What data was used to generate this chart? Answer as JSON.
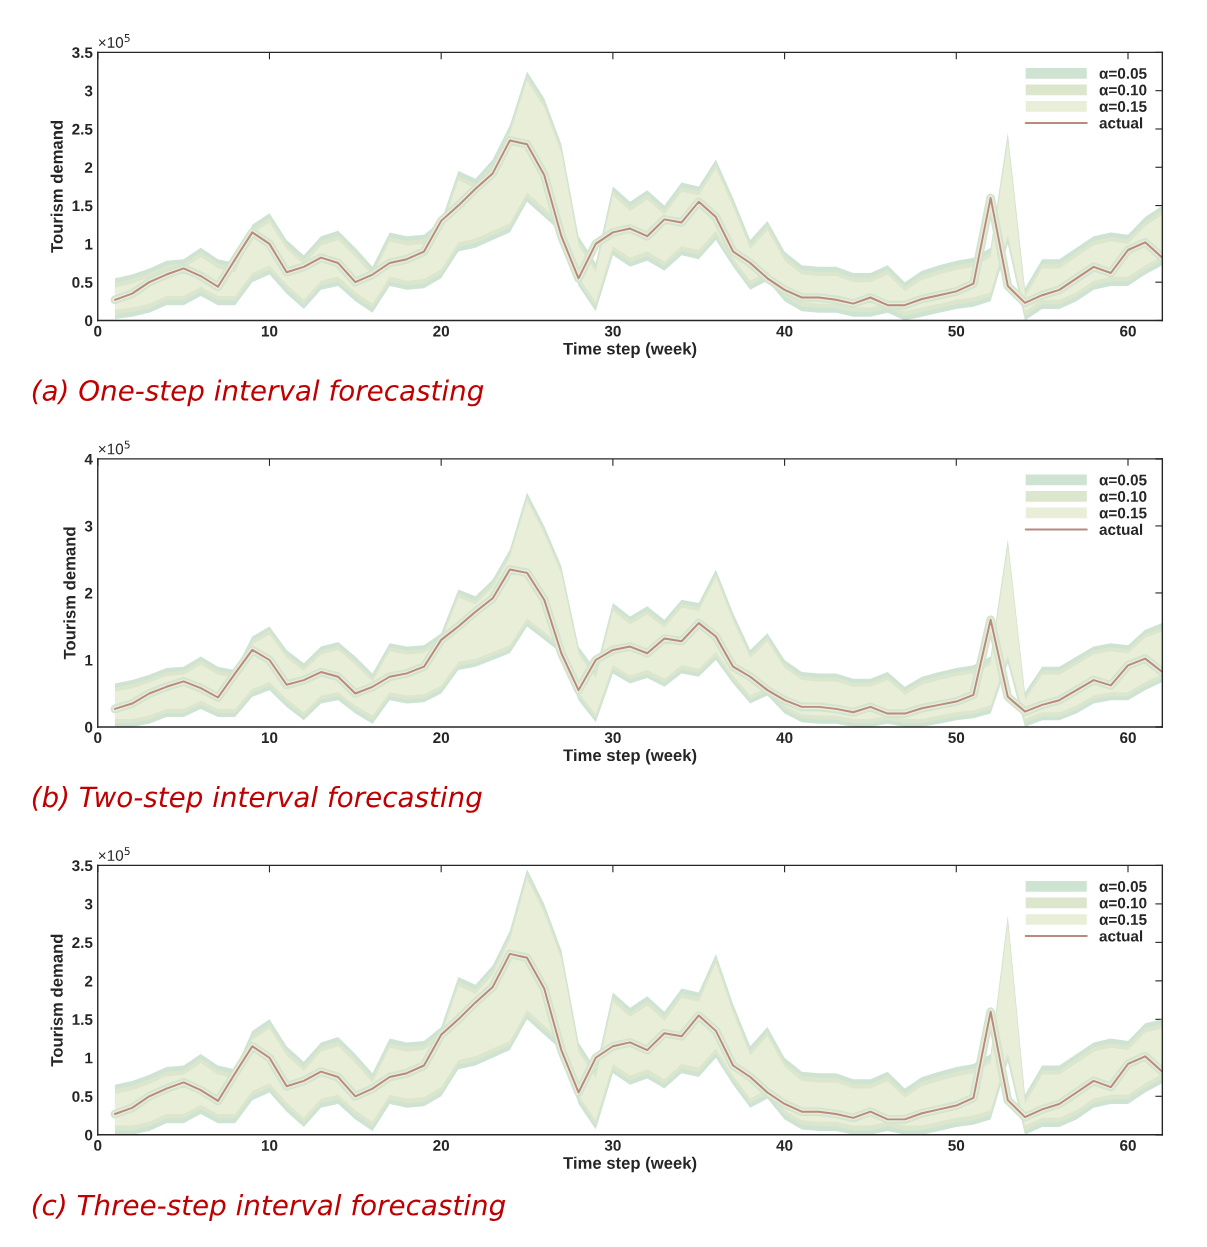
{
  "chart_data": [
    {
      "type": "line",
      "title": "(a) One-step interval forecasting",
      "xlabel": "Time step (week)",
      "ylabel": "Tourism demand",
      "annotations": [
        "×10$^{5}$"
      ],
      "x": [
        1,
        2,
        3,
        4,
        5,
        6,
        7,
        8,
        9,
        10,
        11,
        12,
        13,
        14,
        15,
        16,
        17,
        18,
        19,
        20,
        21,
        22,
        23,
        24,
        25,
        26,
        27,
        28,
        29,
        30,
        31,
        32,
        33,
        34,
        35,
        36,
        37,
        38,
        39,
        40,
        41,
        42,
        43,
        44,
        45,
        46,
        47,
        48,
        49,
        50,
        51,
        52,
        53,
        54,
        55,
        56,
        57,
        58,
        59,
        60,
        61,
        62
      ],
      "xlim": [
        0,
        62
      ],
      "xticks": [
        0,
        10,
        20,
        30,
        40,
        50,
        60
      ],
      "ylim": [
        0,
        3.5
      ],
      "yticks": [
        0,
        0.5,
        1,
        1.5,
        2,
        2.5,
        3,
        3.5
      ],
      "grid": false,
      "legend": "top right",
      "series": [
        {
          "name": "α=0.05",
          "color": "#cfe3d3",
          "values": [
            0.27,
            0.35,
            0.5,
            0.6,
            0.68,
            0.58,
            0.44,
            0.8,
            1.15,
            1.0,
            0.63,
            0.7,
            0.82,
            0.75,
            0.5,
            0.6,
            0.75,
            0.8,
            0.9,
            1.3,
            1.5,
            1.72,
            1.92,
            2.35,
            2.3,
            1.9,
            1.1,
            0.55,
            1.0,
            1.15,
            1.2,
            1.1,
            1.32,
            1.28,
            1.55,
            1.35,
            0.9,
            0.75,
            0.55,
            0.4,
            0.3,
            0.3,
            0.27,
            0.22,
            0.3,
            0.2,
            0.2,
            0.28,
            0.33,
            0.38,
            0.48,
            1.6,
            0.45,
            0.23,
            0.33,
            0.4,
            0.55,
            0.7,
            0.62,
            0.92,
            1.02,
            0.82
          ],
          "upper": [
            0.55,
            0.6,
            0.68,
            0.78,
            0.8,
            0.95,
            0.8,
            0.75,
            1.25,
            1.4,
            1.05,
            0.85,
            1.1,
            1.17,
            0.95,
            0.7,
            1.15,
            1.1,
            1.12,
            1.3,
            1.95,
            1.85,
            2.1,
            2.55,
            3.25,
            2.9,
            2.3,
            1.1,
            0.75,
            1.75,
            1.55,
            1.7,
            1.5,
            1.8,
            1.75,
            2.1,
            1.6,
            1.05,
            1.3,
            0.9,
            0.72,
            0.7,
            0.7,
            0.62,
            0.62,
            0.72,
            0.5,
            0.65,
            0.72,
            0.78,
            0.82,
            0.95,
            2.45,
            0.42,
            0.8,
            0.8,
            0.95,
            1.1,
            1.15,
            1.12,
            1.35,
            1.5
          ],
          "lower": [
            0.02,
            0.05,
            0.1,
            0.2,
            0.2,
            0.32,
            0.2,
            0.2,
            0.5,
            0.6,
            0.35,
            0.15,
            0.4,
            0.45,
            0.25,
            0.1,
            0.45,
            0.4,
            0.42,
            0.55,
            0.9,
            0.95,
            1.05,
            1.15,
            1.55,
            1.35,
            1.15,
            0.45,
            0.12,
            0.85,
            0.7,
            0.78,
            0.65,
            0.85,
            0.8,
            1.05,
            0.7,
            0.4,
            0.52,
            0.25,
            0.12,
            0.1,
            0.1,
            0.05,
            0.05,
            0.1,
            0.0,
            0.05,
            0.1,
            0.15,
            0.18,
            0.25,
            1.0,
            0.0,
            0.15,
            0.15,
            0.25,
            0.4,
            0.45,
            0.45,
            0.6,
            0.72
          ]
        },
        {
          "name": "α=0.10",
          "color": "#dbe6cd",
          "values": [
            0.27,
            0.35,
            0.5,
            0.6,
            0.68,
            0.58,
            0.44,
            0.8,
            1.15,
            1.0,
            0.63,
            0.7,
            0.82,
            0.75,
            0.5,
            0.6,
            0.75,
            0.8,
            0.9,
            1.3,
            1.5,
            1.72,
            1.92,
            2.35,
            2.3,
            1.9,
            1.1,
            0.55,
            1.0,
            1.15,
            1.2,
            1.1,
            1.32,
            1.28,
            1.55,
            1.35,
            0.9,
            0.75,
            0.55,
            0.4,
            0.3,
            0.3,
            0.27,
            0.22,
            0.3,
            0.2,
            0.2,
            0.28,
            0.33,
            0.38,
            0.48,
            1.6,
            0.45,
            0.23,
            0.33,
            0.4,
            0.55,
            0.7,
            0.62,
            0.92,
            1.02,
            0.82
          ],
          "upper": [
            0.49,
            0.54,
            0.62,
            0.72,
            0.74,
            0.89,
            0.74,
            0.69,
            1.19,
            1.34,
            0.99,
            0.79,
            1.04,
            1.11,
            0.89,
            0.64,
            1.09,
            1.04,
            1.06,
            1.24,
            1.89,
            1.79,
            2.04,
            2.49,
            3.19,
            2.84,
            2.24,
            1.04,
            0.69,
            1.69,
            1.49,
            1.64,
            1.44,
            1.74,
            1.69,
            2.04,
            1.54,
            0.99,
            1.24,
            0.84,
            0.66,
            0.64,
            0.64,
            0.56,
            0.56,
            0.66,
            0.44,
            0.59,
            0.66,
            0.72,
            0.76,
            0.89,
            2.39,
            0.36,
            0.74,
            0.74,
            0.89,
            1.04,
            1.09,
            1.06,
            1.29,
            1.44
          ],
          "lower": [
            0.08,
            0.11,
            0.16,
            0.26,
            0.26,
            0.38,
            0.26,
            0.26,
            0.56,
            0.66,
            0.41,
            0.21,
            0.46,
            0.51,
            0.31,
            0.16,
            0.51,
            0.46,
            0.48,
            0.61,
            0.96,
            1.01,
            1.11,
            1.21,
            1.61,
            1.41,
            1.21,
            0.51,
            0.18,
            0.91,
            0.76,
            0.84,
            0.71,
            0.91,
            0.86,
            1.11,
            0.76,
            0.46,
            0.58,
            0.31,
            0.18,
            0.16,
            0.16,
            0.11,
            0.11,
            0.16,
            0.06,
            0.11,
            0.16,
            0.21,
            0.24,
            0.31,
            1.06,
            0.06,
            0.21,
            0.21,
            0.31,
            0.46,
            0.51,
            0.51,
            0.66,
            0.78
          ]
        },
        {
          "name": "α=0.15",
          "color": "#e9eed9",
          "values": [
            0.27,
            0.35,
            0.5,
            0.6,
            0.68,
            0.58,
            0.44,
            0.8,
            1.15,
            1.0,
            0.63,
            0.7,
            0.82,
            0.75,
            0.5,
            0.6,
            0.75,
            0.8,
            0.9,
            1.3,
            1.5,
            1.72,
            1.92,
            2.35,
            2.3,
            1.9,
            1.1,
            0.55,
            1.0,
            1.15,
            1.2,
            1.1,
            1.32,
            1.28,
            1.55,
            1.35,
            0.9,
            0.75,
            0.55,
            0.4,
            0.3,
            0.3,
            0.27,
            0.22,
            0.3,
            0.2,
            0.2,
            0.28,
            0.33,
            0.38,
            0.48,
            1.6,
            0.45,
            0.23,
            0.33,
            0.4,
            0.55,
            0.7,
            0.62,
            0.92,
            1.02,
            0.82
          ],
          "upper": [
            0.43,
            0.48,
            0.56,
            0.66,
            0.68,
            0.83,
            0.68,
            0.63,
            1.13,
            1.28,
            0.93,
            0.73,
            0.98,
            1.05,
            0.83,
            0.58,
            1.03,
            0.98,
            1.0,
            1.18,
            1.83,
            1.73,
            1.98,
            2.43,
            3.13,
            2.78,
            2.18,
            0.98,
            0.63,
            1.63,
            1.43,
            1.58,
            1.38,
            1.68,
            1.63,
            1.98,
            1.48,
            0.93,
            1.18,
            0.78,
            0.6,
            0.58,
            0.58,
            0.5,
            0.5,
            0.6,
            0.38,
            0.53,
            0.6,
            0.66,
            0.7,
            0.83,
            2.33,
            0.3,
            0.68,
            0.68,
            0.83,
            0.98,
            1.03,
            1.0,
            1.23,
            1.38
          ],
          "lower": [
            0.14,
            0.17,
            0.22,
            0.32,
            0.32,
            0.44,
            0.32,
            0.32,
            0.62,
            0.72,
            0.47,
            0.27,
            0.52,
            0.57,
            0.37,
            0.22,
            0.57,
            0.52,
            0.54,
            0.67,
            1.02,
            1.07,
            1.17,
            1.27,
            1.67,
            1.47,
            1.27,
            0.57,
            0.24,
            0.97,
            0.82,
            0.9,
            0.77,
            0.97,
            0.92,
            1.17,
            0.82,
            0.52,
            0.64,
            0.37,
            0.24,
            0.22,
            0.22,
            0.17,
            0.17,
            0.22,
            0.12,
            0.17,
            0.22,
            0.27,
            0.3,
            0.37,
            1.12,
            0.12,
            0.27,
            0.27,
            0.37,
            0.52,
            0.57,
            0.57,
            0.72,
            0.84
          ]
        },
        {
          "name": "actual",
          "type": "line",
          "color": "#b98a7e",
          "values": [
            0.27,
            0.35,
            0.5,
            0.6,
            0.68,
            0.58,
            0.44,
            0.8,
            1.15,
            1.0,
            0.63,
            0.7,
            0.82,
            0.75,
            0.5,
            0.6,
            0.75,
            0.8,
            0.9,
            1.3,
            1.5,
            1.72,
            1.92,
            2.35,
            2.3,
            1.9,
            1.1,
            0.55,
            1.0,
            1.15,
            1.2,
            1.1,
            1.32,
            1.28,
            1.55,
            1.35,
            0.9,
            0.75,
            0.55,
            0.4,
            0.3,
            0.3,
            0.27,
            0.22,
            0.3,
            0.2,
            0.2,
            0.28,
            0.33,
            0.38,
            0.48,
            1.6,
            0.45,
            0.23,
            0.33,
            0.4,
            0.55,
            0.7,
            0.62,
            0.92,
            1.02,
            0.82
          ]
        }
      ]
    },
    {
      "type": "line",
      "title": "(b) Two-step interval forecasting",
      "xlabel": "Time step (week)",
      "ylabel": "Tourism demand",
      "annotations": [
        "×10$^{5}$"
      ],
      "x": [
        1,
        2,
        3,
        4,
        5,
        6,
        7,
        8,
        9,
        10,
        11,
        12,
        13,
        14,
        15,
        16,
        17,
        18,
        19,
        20,
        21,
        22,
        23,
        24,
        25,
        26,
        27,
        28,
        29,
        30,
        31,
        32,
        33,
        34,
        35,
        36,
        37,
        38,
        39,
        40,
        41,
        42,
        43,
        44,
        45,
        46,
        47,
        48,
        49,
        50,
        51,
        52,
        53,
        54,
        55,
        56,
        57,
        58,
        59,
        60,
        61,
        62
      ],
      "xlim": [
        0,
        62
      ],
      "xticks": [
        0,
        10,
        20,
        30,
        40,
        50,
        60
      ],
      "ylim": [
        0,
        4
      ],
      "yticks": [
        0,
        1,
        2,
        3,
        4
      ],
      "grid": false,
      "legend": "top right",
      "series": [
        {
          "name": "α=0.05",
          "color": "#cfe3d3",
          "values": [
            0.27,
            0.35,
            0.5,
            0.6,
            0.68,
            0.58,
            0.44,
            0.8,
            1.15,
            1.0,
            0.63,
            0.7,
            0.82,
            0.75,
            0.5,
            0.6,
            0.75,
            0.8,
            0.9,
            1.3,
            1.5,
            1.72,
            1.92,
            2.35,
            2.3,
            1.9,
            1.1,
            0.55,
            1.0,
            1.15,
            1.2,
            1.1,
            1.32,
            1.28,
            1.55,
            1.35,
            0.9,
            0.75,
            0.55,
            0.4,
            0.3,
            0.3,
            0.27,
            0.22,
            0.3,
            0.2,
            0.2,
            0.28,
            0.33,
            0.38,
            0.48,
            1.6,
            0.45,
            0.23,
            0.33,
            0.4,
            0.55,
            0.7,
            0.62,
            0.92,
            1.02,
            0.82
          ],
          "upper": [
            0.65,
            0.7,
            0.78,
            0.88,
            0.9,
            1.05,
            0.9,
            0.85,
            1.35,
            1.5,
            1.15,
            0.95,
            1.2,
            1.27,
            1.05,
            0.8,
            1.25,
            1.2,
            1.22,
            1.4,
            2.05,
            1.95,
            2.2,
            2.65,
            3.5,
            3.0,
            2.4,
            1.2,
            0.85,
            1.85,
            1.65,
            1.8,
            1.6,
            1.9,
            1.85,
            2.35,
            1.7,
            1.15,
            1.4,
            1.0,
            0.82,
            0.8,
            0.8,
            0.72,
            0.72,
            0.82,
            0.6,
            0.75,
            0.82,
            0.88,
            0.92,
            1.05,
            2.8,
            0.52,
            0.9,
            0.9,
            1.05,
            1.2,
            1.25,
            1.22,
            1.45,
            1.55
          ],
          "lower": [
            0.0,
            0.0,
            0.05,
            0.15,
            0.15,
            0.27,
            0.15,
            0.15,
            0.45,
            0.55,
            0.3,
            0.1,
            0.35,
            0.4,
            0.2,
            0.05,
            0.4,
            0.35,
            0.37,
            0.5,
            0.85,
            0.9,
            1.0,
            1.1,
            1.5,
            1.3,
            1.1,
            0.4,
            0.07,
            0.8,
            0.65,
            0.73,
            0.6,
            0.8,
            0.75,
            1.0,
            0.65,
            0.35,
            0.47,
            0.2,
            0.07,
            0.05,
            0.05,
            0.0,
            0.0,
            0.05,
            0.0,
            0.0,
            0.05,
            0.1,
            0.13,
            0.2,
            0.95,
            0.0,
            0.1,
            0.1,
            0.2,
            0.35,
            0.4,
            0.4,
            0.55,
            0.67
          ]
        },
        {
          "name": "α=0.10",
          "color": "#dbe6cd",
          "values": [
            0.27,
            0.35,
            0.5,
            0.6,
            0.68,
            0.58,
            0.44,
            0.8,
            1.15,
            1.0,
            0.63,
            0.7,
            0.82,
            0.75,
            0.5,
            0.6,
            0.75,
            0.8,
            0.9,
            1.3,
            1.5,
            1.72,
            1.92,
            2.35,
            2.3,
            1.9,
            1.1,
            0.55,
            1.0,
            1.15,
            1.2,
            1.1,
            1.32,
            1.28,
            1.55,
            1.35,
            0.9,
            0.75,
            0.55,
            0.4,
            0.3,
            0.3,
            0.27,
            0.22,
            0.3,
            0.2,
            0.2,
            0.28,
            0.33,
            0.38,
            0.48,
            1.6,
            0.45,
            0.23,
            0.33,
            0.4,
            0.55,
            0.7,
            0.62,
            0.92,
            1.02,
            0.82
          ],
          "upper": [
            0.59,
            0.64,
            0.72,
            0.82,
            0.84,
            0.99,
            0.84,
            0.79,
            1.29,
            1.44,
            1.09,
            0.89,
            1.14,
            1.21,
            0.99,
            0.74,
            1.19,
            1.14,
            1.16,
            1.34,
            1.99,
            1.89,
            2.14,
            2.59,
            3.44,
            2.94,
            2.34,
            1.14,
            0.79,
            1.79,
            1.59,
            1.74,
            1.54,
            1.84,
            1.79,
            2.29,
            1.64,
            1.09,
            1.34,
            0.94,
            0.76,
            0.74,
            0.74,
            0.66,
            0.66,
            0.76,
            0.54,
            0.69,
            0.76,
            0.82,
            0.86,
            0.99,
            2.74,
            0.46,
            0.84,
            0.84,
            0.99,
            1.14,
            1.19,
            1.16,
            1.39,
            1.49
          ],
          "lower": [
            0.06,
            0.06,
            0.11,
            0.21,
            0.21,
            0.33,
            0.21,
            0.21,
            0.51,
            0.61,
            0.36,
            0.16,
            0.41,
            0.46,
            0.26,
            0.11,
            0.46,
            0.41,
            0.43,
            0.56,
            0.91,
            0.96,
            1.06,
            1.16,
            1.56,
            1.36,
            1.16,
            0.46,
            0.13,
            0.86,
            0.71,
            0.79,
            0.66,
            0.86,
            0.81,
            1.06,
            0.71,
            0.41,
            0.53,
            0.26,
            0.13,
            0.11,
            0.11,
            0.06,
            0.06,
            0.11,
            0.06,
            0.06,
            0.11,
            0.16,
            0.19,
            0.26,
            1.01,
            0.06,
            0.16,
            0.16,
            0.26,
            0.41,
            0.46,
            0.46,
            0.61,
            0.73
          ]
        },
        {
          "name": "α=0.15",
          "color": "#e9eed9",
          "values": [
            0.27,
            0.35,
            0.5,
            0.6,
            0.68,
            0.58,
            0.44,
            0.8,
            1.15,
            1.0,
            0.63,
            0.7,
            0.82,
            0.75,
            0.5,
            0.6,
            0.75,
            0.8,
            0.9,
            1.3,
            1.5,
            1.72,
            1.92,
            2.35,
            2.3,
            1.9,
            1.1,
            0.55,
            1.0,
            1.15,
            1.2,
            1.1,
            1.32,
            1.28,
            1.55,
            1.35,
            0.9,
            0.75,
            0.55,
            0.4,
            0.3,
            0.3,
            0.27,
            0.22,
            0.3,
            0.2,
            0.2,
            0.28,
            0.33,
            0.38,
            0.48,
            1.6,
            0.45,
            0.23,
            0.33,
            0.4,
            0.55,
            0.7,
            0.62,
            0.92,
            1.02,
            0.82
          ],
          "upper": [
            0.53,
            0.58,
            0.66,
            0.76,
            0.78,
            0.93,
            0.78,
            0.73,
            1.23,
            1.38,
            1.03,
            0.83,
            1.08,
            1.15,
            0.93,
            0.68,
            1.13,
            1.08,
            1.1,
            1.28,
            1.93,
            1.83,
            2.08,
            2.53,
            3.38,
            2.88,
            2.28,
            1.08,
            0.73,
            1.73,
            1.53,
            1.68,
            1.48,
            1.78,
            1.73,
            2.23,
            1.58,
            1.03,
            1.28,
            0.88,
            0.7,
            0.68,
            0.68,
            0.6,
            0.6,
            0.7,
            0.48,
            0.63,
            0.7,
            0.76,
            0.8,
            0.93,
            2.68,
            0.4,
            0.78,
            0.78,
            0.93,
            1.08,
            1.13,
            1.1,
            1.33,
            1.43
          ],
          "lower": [
            0.12,
            0.12,
            0.17,
            0.27,
            0.27,
            0.39,
            0.27,
            0.27,
            0.57,
            0.67,
            0.42,
            0.22,
            0.47,
            0.52,
            0.32,
            0.17,
            0.52,
            0.47,
            0.49,
            0.62,
            0.97,
            1.02,
            1.12,
            1.22,
            1.62,
            1.42,
            1.22,
            0.52,
            0.19,
            0.92,
            0.77,
            0.85,
            0.72,
            0.92,
            0.87,
            1.12,
            0.77,
            0.47,
            0.59,
            0.32,
            0.19,
            0.17,
            0.17,
            0.12,
            0.12,
            0.17,
            0.12,
            0.12,
            0.17,
            0.22,
            0.25,
            0.32,
            1.07,
            0.12,
            0.22,
            0.22,
            0.32,
            0.47,
            0.52,
            0.52,
            0.67,
            0.79
          ]
        },
        {
          "name": "actual",
          "type": "line",
          "color": "#b98a7e",
          "values": [
            0.27,
            0.35,
            0.5,
            0.6,
            0.68,
            0.58,
            0.44,
            0.8,
            1.15,
            1.0,
            0.63,
            0.7,
            0.82,
            0.75,
            0.5,
            0.6,
            0.75,
            0.8,
            0.9,
            1.3,
            1.5,
            1.72,
            1.92,
            2.35,
            2.3,
            1.9,
            1.1,
            0.55,
            1.0,
            1.15,
            1.2,
            1.1,
            1.32,
            1.28,
            1.55,
            1.35,
            0.9,
            0.75,
            0.55,
            0.4,
            0.3,
            0.3,
            0.27,
            0.22,
            0.3,
            0.2,
            0.2,
            0.28,
            0.33,
            0.38,
            0.48,
            1.6,
            0.45,
            0.23,
            0.33,
            0.4,
            0.55,
            0.7,
            0.62,
            0.92,
            1.02,
            0.82
          ]
        }
      ]
    },
    {
      "type": "line",
      "title": "(c) Three-step interval forecasting",
      "xlabel": "Time step (week)",
      "ylabel": "Tourism demand",
      "annotations": [
        "×10$^{5}$"
      ],
      "x": [
        1,
        2,
        3,
        4,
        5,
        6,
        7,
        8,
        9,
        10,
        11,
        12,
        13,
        14,
        15,
        16,
        17,
        18,
        19,
        20,
        21,
        22,
        23,
        24,
        25,
        26,
        27,
        28,
        29,
        30,
        31,
        32,
        33,
        34,
        35,
        36,
        37,
        38,
        39,
        40,
        41,
        42,
        43,
        44,
        45,
        46,
        47,
        48,
        49,
        50,
        51,
        52,
        53,
        54,
        55,
        56,
        57,
        58,
        59,
        60,
        61,
        62
      ],
      "xlim": [
        0,
        62
      ],
      "xticks": [
        0,
        10,
        20,
        30,
        40,
        50,
        60
      ],
      "ylim": [
        0,
        3.5
      ],
      "yticks": [
        0,
        0.5,
        1,
        1.5,
        2,
        2.5,
        3,
        3.5
      ],
      "grid": false,
      "legend": "top right",
      "series": [
        {
          "name": "α=0.05",
          "color": "#cfe3d3",
          "values": [
            0.27,
            0.35,
            0.5,
            0.6,
            0.68,
            0.58,
            0.44,
            0.8,
            1.15,
            1.0,
            0.63,
            0.7,
            0.82,
            0.75,
            0.5,
            0.6,
            0.75,
            0.8,
            0.9,
            1.3,
            1.5,
            1.72,
            1.92,
            2.35,
            2.3,
            1.9,
            1.1,
            0.55,
            1.0,
            1.15,
            1.2,
            1.1,
            1.32,
            1.28,
            1.55,
            1.35,
            0.9,
            0.75,
            0.55,
            0.4,
            0.3,
            0.3,
            0.27,
            0.22,
            0.3,
            0.2,
            0.2,
            0.28,
            0.33,
            0.38,
            0.48,
            1.6,
            0.45,
            0.23,
            0.33,
            0.4,
            0.55,
            0.7,
            0.62,
            0.92,
            1.02,
            0.82
          ],
          "upper": [
            0.65,
            0.7,
            0.78,
            0.88,
            0.9,
            1.05,
            0.9,
            0.85,
            1.35,
            1.5,
            1.15,
            0.95,
            1.2,
            1.27,
            1.05,
            0.8,
            1.25,
            1.2,
            1.22,
            1.4,
            2.05,
            1.95,
            2.2,
            2.65,
            3.45,
            3.0,
            2.4,
            1.2,
            0.85,
            1.85,
            1.65,
            1.8,
            1.6,
            1.9,
            1.85,
            2.35,
            1.7,
            1.15,
            1.4,
            1.0,
            0.82,
            0.8,
            0.8,
            0.72,
            0.72,
            0.82,
            0.6,
            0.75,
            0.82,
            0.88,
            0.92,
            1.05,
            2.85,
            0.52,
            0.9,
            0.9,
            1.05,
            1.2,
            1.25,
            1.22,
            1.45,
            1.5
          ],
          "lower": [
            0.0,
            0.0,
            0.05,
            0.15,
            0.15,
            0.27,
            0.15,
            0.15,
            0.45,
            0.55,
            0.3,
            0.1,
            0.35,
            0.4,
            0.2,
            0.05,
            0.4,
            0.35,
            0.37,
            0.5,
            0.85,
            0.9,
            1.0,
            1.1,
            1.5,
            1.3,
            1.1,
            0.4,
            0.07,
            0.8,
            0.65,
            0.73,
            0.6,
            0.8,
            0.75,
            1.0,
            0.65,
            0.35,
            0.47,
            0.2,
            0.07,
            0.05,
            0.05,
            0.0,
            0.0,
            0.05,
            0.0,
            0.0,
            0.05,
            0.1,
            0.13,
            0.2,
            0.95,
            0.0,
            0.1,
            0.1,
            0.2,
            0.35,
            0.4,
            0.4,
            0.55,
            0.67
          ]
        },
        {
          "name": "α=0.10",
          "color": "#dbe6cd",
          "values": [
            0.27,
            0.35,
            0.5,
            0.6,
            0.68,
            0.58,
            0.44,
            0.8,
            1.15,
            1.0,
            0.63,
            0.7,
            0.82,
            0.75,
            0.5,
            0.6,
            0.75,
            0.8,
            0.9,
            1.3,
            1.5,
            1.72,
            1.92,
            2.35,
            2.3,
            1.9,
            1.1,
            0.55,
            1.0,
            1.15,
            1.2,
            1.1,
            1.32,
            1.28,
            1.55,
            1.35,
            0.9,
            0.75,
            0.55,
            0.4,
            0.3,
            0.3,
            0.27,
            0.22,
            0.3,
            0.2,
            0.2,
            0.28,
            0.33,
            0.38,
            0.48,
            1.6,
            0.45,
            0.23,
            0.33,
            0.4,
            0.55,
            0.7,
            0.62,
            0.92,
            1.02,
            0.82
          ],
          "upper": [
            0.59,
            0.64,
            0.72,
            0.82,
            0.84,
            0.99,
            0.84,
            0.79,
            1.29,
            1.44,
            1.09,
            0.89,
            1.14,
            1.21,
            0.99,
            0.74,
            1.19,
            1.14,
            1.16,
            1.34,
            1.99,
            1.89,
            2.14,
            2.59,
            3.39,
            2.94,
            2.34,
            1.14,
            0.79,
            1.79,
            1.59,
            1.74,
            1.54,
            1.84,
            1.79,
            2.29,
            1.64,
            1.09,
            1.34,
            0.94,
            0.76,
            0.74,
            0.74,
            0.66,
            0.66,
            0.76,
            0.54,
            0.69,
            0.76,
            0.82,
            0.86,
            0.99,
            2.79,
            0.46,
            0.84,
            0.84,
            0.99,
            1.14,
            1.19,
            1.16,
            1.39,
            1.44
          ],
          "lower": [
            0.06,
            0.06,
            0.11,
            0.21,
            0.21,
            0.33,
            0.21,
            0.21,
            0.51,
            0.61,
            0.36,
            0.16,
            0.41,
            0.46,
            0.26,
            0.11,
            0.46,
            0.41,
            0.43,
            0.56,
            0.91,
            0.96,
            1.06,
            1.16,
            1.56,
            1.36,
            1.16,
            0.46,
            0.13,
            0.86,
            0.71,
            0.79,
            0.66,
            0.86,
            0.81,
            1.06,
            0.71,
            0.41,
            0.53,
            0.26,
            0.13,
            0.11,
            0.11,
            0.06,
            0.06,
            0.11,
            0.06,
            0.06,
            0.11,
            0.16,
            0.19,
            0.26,
            1.01,
            0.06,
            0.16,
            0.16,
            0.26,
            0.41,
            0.46,
            0.46,
            0.61,
            0.73
          ]
        },
        {
          "name": "α=0.15",
          "color": "#e9eed9",
          "values": [
            0.27,
            0.35,
            0.5,
            0.6,
            0.68,
            0.58,
            0.44,
            0.8,
            1.15,
            1.0,
            0.63,
            0.7,
            0.82,
            0.75,
            0.5,
            0.6,
            0.75,
            0.8,
            0.9,
            1.3,
            1.5,
            1.72,
            1.92,
            2.35,
            2.3,
            1.9,
            1.1,
            0.55,
            1.0,
            1.15,
            1.2,
            1.1,
            1.32,
            1.28,
            1.55,
            1.35,
            0.9,
            0.75,
            0.55,
            0.4,
            0.3,
            0.3,
            0.27,
            0.22,
            0.3,
            0.2,
            0.2,
            0.28,
            0.33,
            0.38,
            0.48,
            1.6,
            0.45,
            0.23,
            0.33,
            0.4,
            0.55,
            0.7,
            0.62,
            0.92,
            1.02,
            0.82
          ],
          "upper": [
            0.53,
            0.58,
            0.66,
            0.76,
            0.78,
            0.93,
            0.78,
            0.73,
            1.23,
            1.38,
            1.03,
            0.83,
            1.08,
            1.15,
            0.93,
            0.68,
            1.13,
            1.08,
            1.1,
            1.28,
            1.93,
            1.83,
            2.08,
            2.53,
            3.33,
            2.88,
            2.28,
            1.08,
            0.73,
            1.73,
            1.53,
            1.68,
            1.48,
            1.78,
            1.73,
            2.23,
            1.58,
            1.03,
            1.28,
            0.88,
            0.7,
            0.68,
            0.68,
            0.6,
            0.6,
            0.7,
            0.48,
            0.63,
            0.7,
            0.76,
            0.8,
            0.93,
            2.73,
            0.4,
            0.78,
            0.78,
            0.93,
            1.08,
            1.13,
            1.1,
            1.33,
            1.38
          ],
          "lower": [
            0.12,
            0.12,
            0.17,
            0.27,
            0.27,
            0.39,
            0.27,
            0.27,
            0.57,
            0.67,
            0.42,
            0.22,
            0.47,
            0.52,
            0.32,
            0.17,
            0.52,
            0.47,
            0.49,
            0.62,
            0.97,
            1.02,
            1.12,
            1.22,
            1.62,
            1.42,
            1.22,
            0.52,
            0.19,
            0.92,
            0.77,
            0.85,
            0.72,
            0.92,
            0.87,
            1.12,
            0.77,
            0.47,
            0.59,
            0.32,
            0.19,
            0.17,
            0.17,
            0.12,
            0.12,
            0.17,
            0.12,
            0.12,
            0.17,
            0.22,
            0.25,
            0.32,
            1.07,
            0.12,
            0.22,
            0.22,
            0.32,
            0.47,
            0.52,
            0.52,
            0.67,
            0.79
          ]
        },
        {
          "name": "actual",
          "type": "line",
          "color": "#b98a7e",
          "values": [
            0.27,
            0.35,
            0.5,
            0.6,
            0.68,
            0.58,
            0.44,
            0.8,
            1.15,
            1.0,
            0.63,
            0.7,
            0.82,
            0.75,
            0.5,
            0.6,
            0.75,
            0.8,
            0.9,
            1.3,
            1.5,
            1.72,
            1.92,
            2.35,
            2.3,
            1.9,
            1.1,
            0.55,
            1.0,
            1.15,
            1.2,
            1.1,
            1.32,
            1.28,
            1.55,
            1.35,
            0.9,
            0.75,
            0.55,
            0.4,
            0.3,
            0.3,
            0.27,
            0.22,
            0.3,
            0.2,
            0.2,
            0.28,
            0.33,
            0.38,
            0.48,
            1.6,
            0.45,
            0.23,
            0.33,
            0.4,
            0.55,
            0.7,
            0.62,
            0.92,
            1.02,
            0.82
          ]
        }
      ]
    }
  ]
}
